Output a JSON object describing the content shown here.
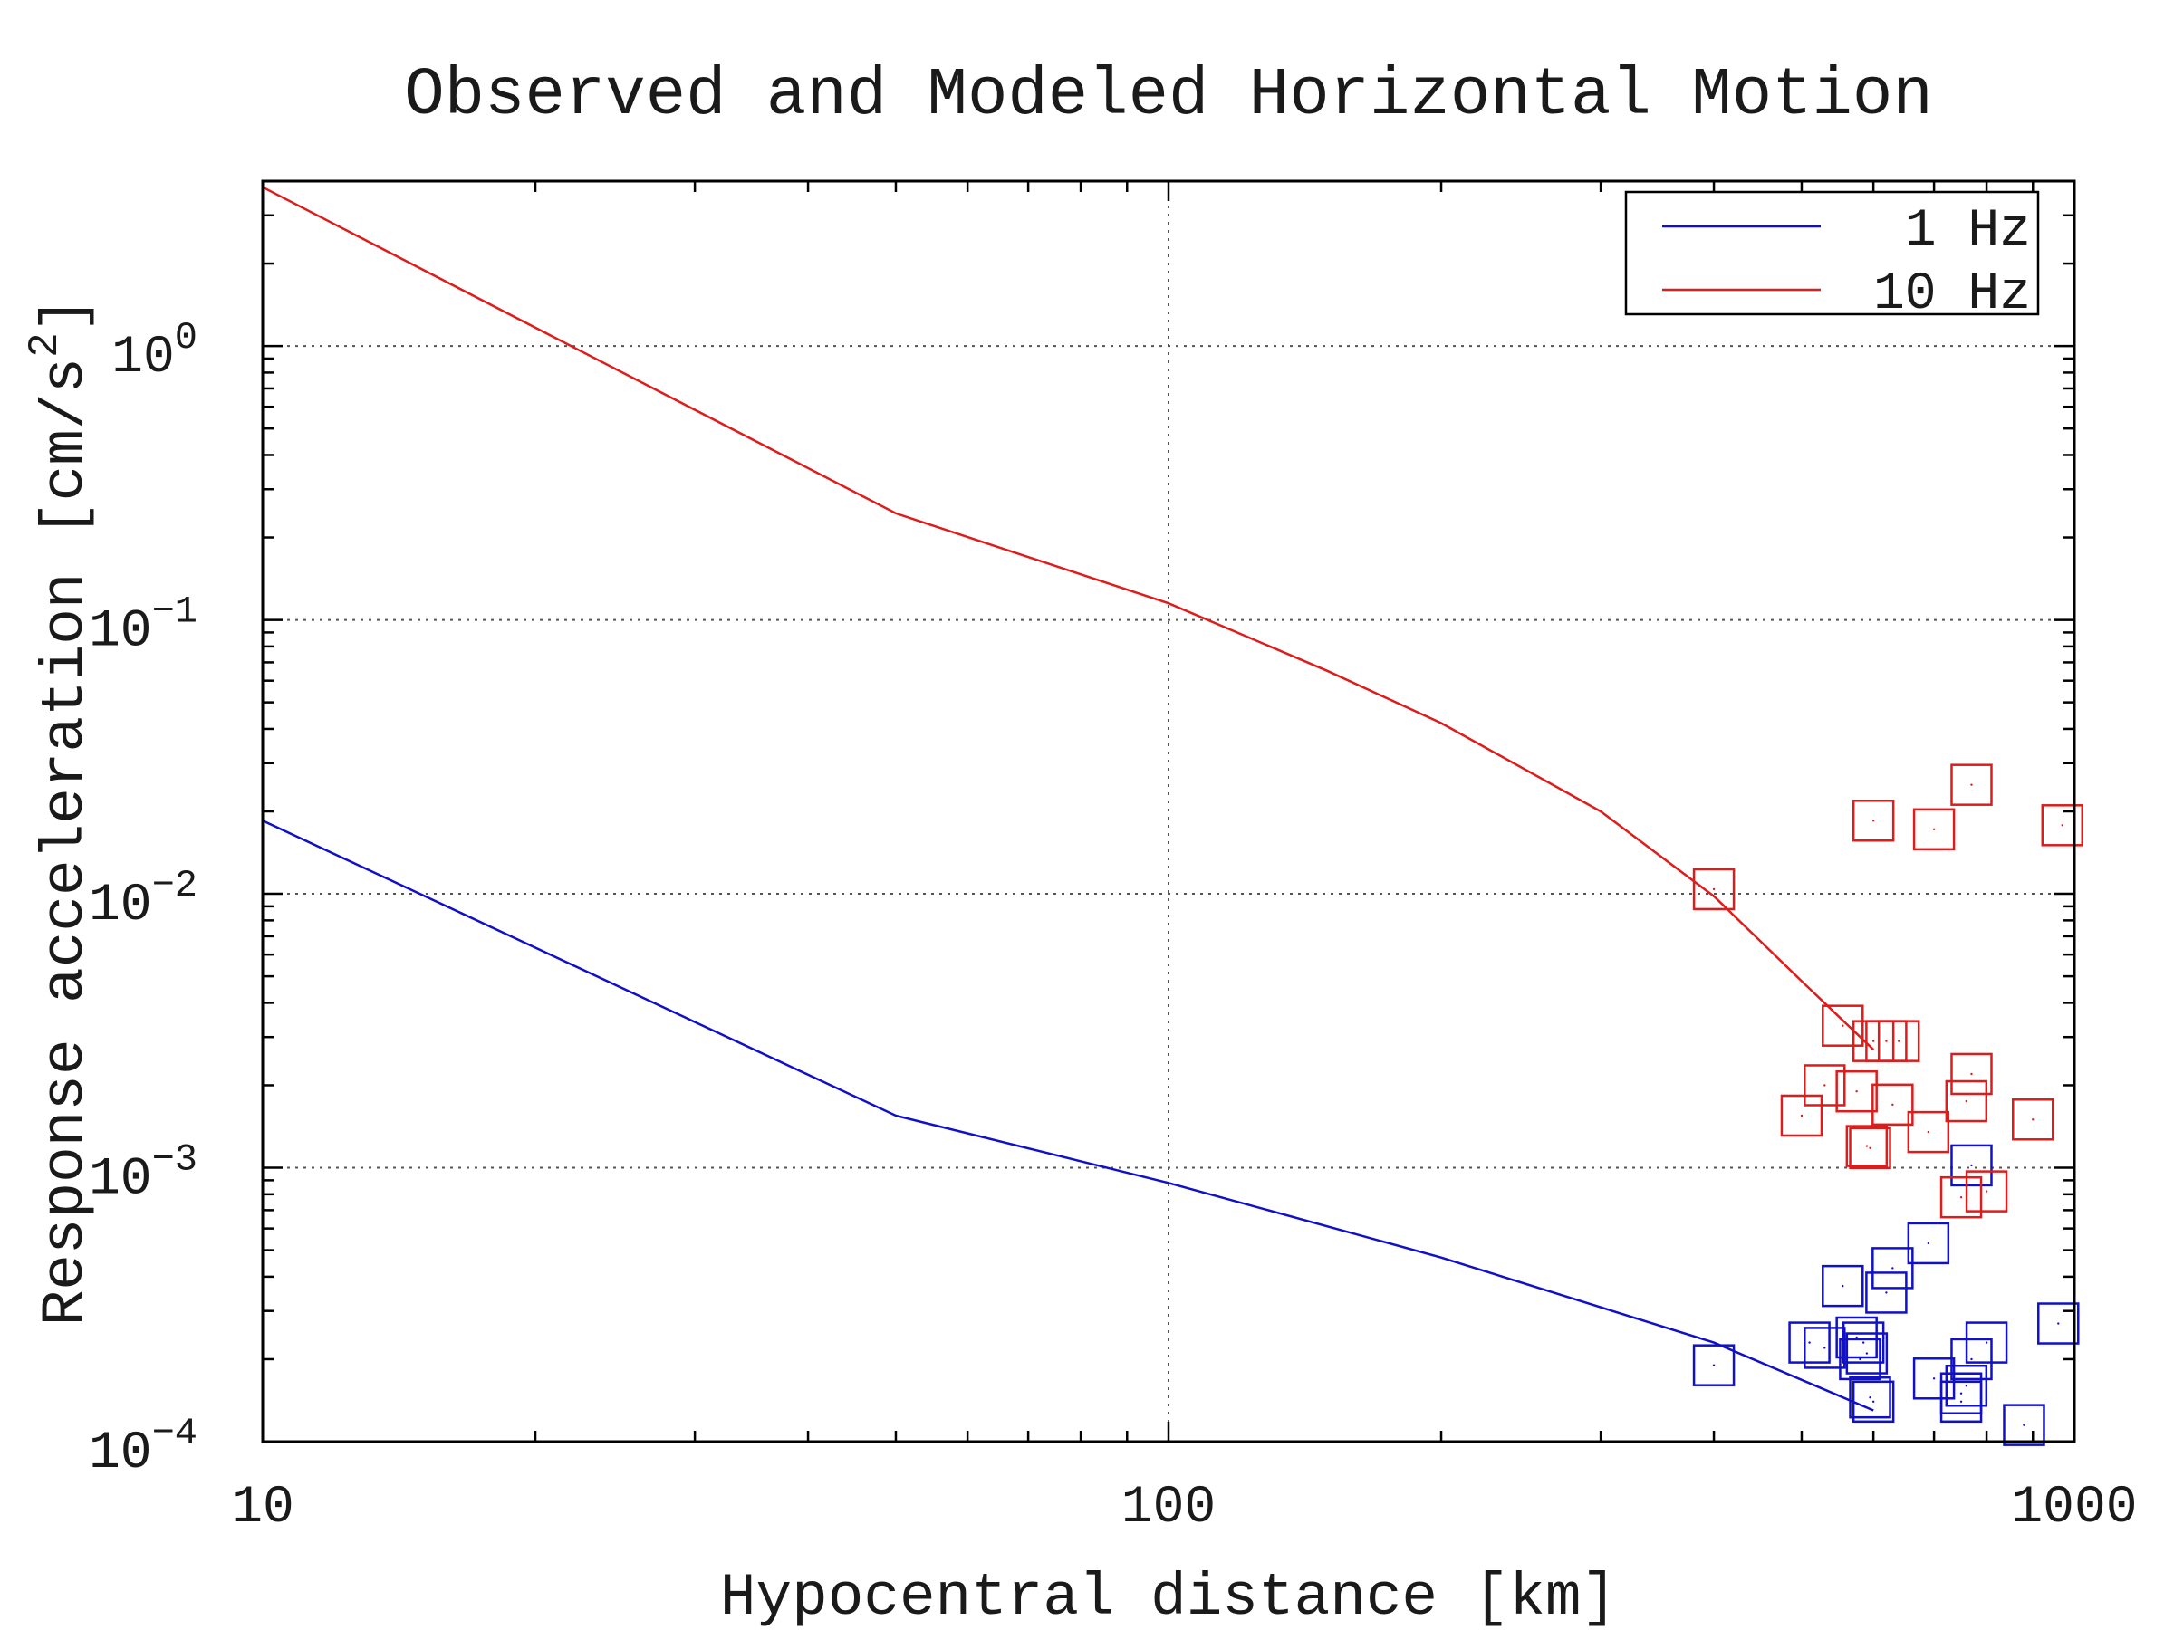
{
  "chart_data": {
    "type": "scatter",
    "title": "Observed and Modeled Horizontal Motion",
    "xlabel": "Hypocentral distance [km]",
    "ylabel_base": "Response acceleration [cm/s",
    "ylabel_exp": "2",
    "ylabel_close": "]",
    "xscale": "log",
    "yscale": "log",
    "xlim": [
      10,
      1000
    ],
    "ylim": [
      0.0001,
      4
    ],
    "grid": true,
    "legend_position": "top-right",
    "x_ticks": [
      {
        "value": 10,
        "label": "10"
      },
      {
        "value": 100,
        "label": "100"
      },
      {
        "value": 1000,
        "label": "1000"
      }
    ],
    "y_ticks": [
      {
        "value": 1,
        "base": "10",
        "exp": "0"
      },
      {
        "value": 0.1,
        "base": "10",
        "exp": "−1"
      },
      {
        "value": 0.01,
        "base": "10",
        "exp": "−2"
      },
      {
        "value": 0.001,
        "base": "10",
        "exp": "−3"
      },
      {
        "value": 0.0001,
        "base": "10",
        "exp": "−4"
      }
    ],
    "series": [
      {
        "name": "1 Hz",
        "color": "#1010c8",
        "model": [
          [
            10,
            0.0185
          ],
          [
            50,
            0.00155
          ],
          [
            100,
            0.00088
          ],
          [
            200,
            0.00047
          ],
          [
            400,
            0.00023
          ],
          [
            600,
            0.00013
          ]
        ],
        "observed": [
          [
            400,
            0.00019
          ],
          [
            510,
            0.00023
          ],
          [
            530,
            0.00022
          ],
          [
            555,
            0.00037
          ],
          [
            575,
            0.00024
          ],
          [
            580,
            0.0002
          ],
          [
            585,
            0.00023
          ],
          [
            590,
            0.00021
          ],
          [
            595,
            0.000145
          ],
          [
            600,
            0.00014
          ],
          [
            620,
            0.00035
          ],
          [
            630,
            0.00043
          ],
          [
            690,
            0.00053
          ],
          [
            700,
            0.00017
          ],
          [
            750,
            0.00015
          ],
          [
            750,
            0.00014
          ],
          [
            760,
            0.00016
          ],
          [
            770,
            0.0002
          ],
          [
            770,
            0.00102
          ],
          [
            800,
            0.00023
          ],
          [
            880,
            0.000115
          ],
          [
            960,
            0.00027
          ]
        ]
      },
      {
        "name": "10 Hz",
        "color": "#dd1c1c",
        "model": [
          [
            10,
            3.8
          ],
          [
            50,
            0.245
          ],
          [
            100,
            0.115
          ],
          [
            150,
            0.065
          ],
          [
            200,
            0.042
          ],
          [
            300,
            0.02
          ],
          [
            400,
            0.0098
          ],
          [
            500,
            0.0048
          ],
          [
            600,
            0.0027
          ]
        ],
        "observed": [
          [
            400,
            0.0104
          ],
          [
            500,
            0.00155
          ],
          [
            530,
            0.002
          ],
          [
            555,
            0.0033
          ],
          [
            575,
            0.0019
          ],
          [
            590,
            0.0012
          ],
          [
            595,
            0.00118
          ],
          [
            600,
            0.0185
          ],
          [
            600,
            0.0029
          ],
          [
            620,
            0.0029
          ],
          [
            630,
            0.0017
          ],
          [
            640,
            0.0029
          ],
          [
            690,
            0.00135
          ],
          [
            700,
            0.0172
          ],
          [
            750,
            0.00078
          ],
          [
            760,
            0.00175
          ],
          [
            770,
            0.0022
          ],
          [
            770,
            0.025
          ],
          [
            800,
            0.00082
          ],
          [
            900,
            0.0015
          ],
          [
            970,
            0.0178
          ]
        ]
      }
    ]
  }
}
